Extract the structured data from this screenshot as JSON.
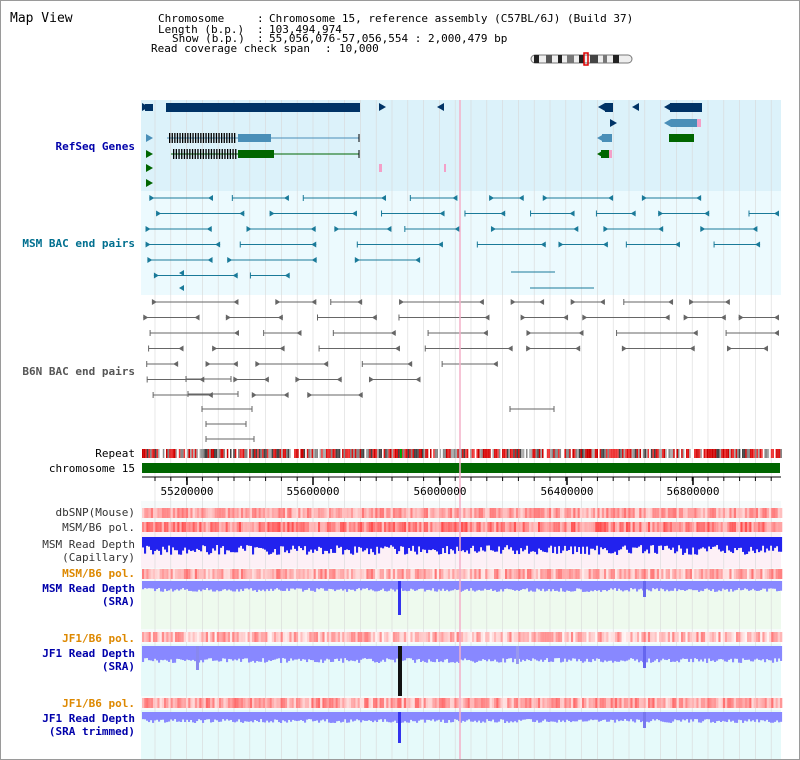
{
  "header": {
    "title": "Map View",
    "info_lines": [
      {
        "key": "Chromosome",
        "value": "Chromosome 15, reference assembly (C57BL/6J) (Build 37)"
      },
      {
        "key": "Length (b.p.)",
        "value": "103,494,974"
      },
      {
        "key": "Show (b.p.)",
        "value": "55,056,076-57,056,554 : 2,000,479 bp"
      },
      {
        "key": "Read coverage check span",
        "value": "10,000"
      }
    ]
  },
  "tracks": {
    "refseq": {
      "label": "RefSeq Genes",
      "color": "#0000aa",
      "bg": "#dcf2fa"
    },
    "msm_bac": {
      "label": "MSM BAC end pairs",
      "color": "#006f8f",
      "bg": "#ecfafe"
    },
    "b6n_bac": {
      "label": "B6N BAC end pairs",
      "color": "#555555",
      "bg": "#ffffff"
    },
    "repeat": {
      "label": "Repeat"
    },
    "chromosome": {
      "label": "chromosome 15",
      "color": "#006600"
    },
    "axis_ticks": [
      "55200000",
      "55600000",
      "56000000",
      "56400000",
      "56800000"
    ],
    "dbsnp": {
      "label": "dbSNP(Mouse)"
    },
    "msm_pol": {
      "label": "MSM/B6 pol."
    },
    "msm_depth_cap": {
      "label_1": "MSM Read Depth",
      "label_2": "(Capillary)"
    },
    "msm_pol2": {
      "label": "MSM/B6 pol."
    },
    "msm_depth_sra": {
      "label_1": "MSM Read Depth",
      "label_2": "(SRA)"
    },
    "jf1_pol": {
      "label": "JF1/B6 pol."
    },
    "jf1_depth_sra": {
      "label_1": "JF1 Read Depth",
      "label_2": "(SRA)"
    },
    "jf1_pol2": {
      "label": "JF1/B6 pol."
    },
    "jf1_depth_trim": {
      "label_1": "JF1 Read Depth",
      "label_2": "(SRA trimmed)"
    }
  },
  "colors": {
    "refseq_dark": "#003366",
    "refseq_mid": "#4a8fb8",
    "refseq_green": "#006600",
    "msm_line": "#1a7a99",
    "b6n_line": "#666666",
    "depth_blue": "#2222ee",
    "depth_light": "#8888ff",
    "pol_red": "#ee5555",
    "pol_orange": "#dd8800"
  }
}
